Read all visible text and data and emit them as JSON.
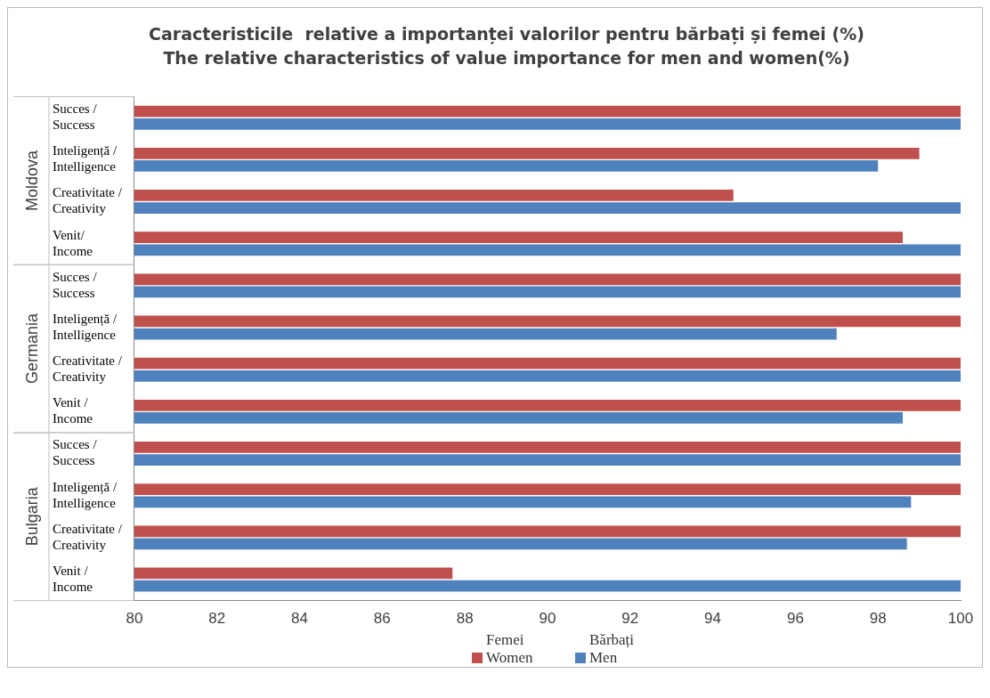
{
  "chart_data": {
    "type": "bar",
    "orientation": "horizontal",
    "title": "Caracteristicile  relative a importanței valorilor pentru bărbați și femei (%)",
    "subtitle": "The relative characteristics of value importance for men and women(%)",
    "categories": [
      "Succes / Success",
      "Inteligență / Intelligence",
      "Creativitate / Creativity",
      "Venit/ Income",
      "Succes / Success",
      "Inteligență / Intelligence",
      "Creativitate / Creativity",
      "Venit / Income",
      "Succes / Success",
      "Inteligență / Intelligence",
      "Creativitate / Creativity",
      "Venit / Income"
    ],
    "series": [
      {
        "name": "Femei Women",
        "color": "#c0504d",
        "values": [
          100,
          99,
          94.5,
          98.6,
          100,
          100,
          100,
          100,
          100,
          100,
          100,
          87.7
        ]
      },
      {
        "name": "Bărbați Men",
        "color": "#4f81bd",
        "values": [
          100,
          98,
          100,
          100,
          100,
          97,
          100,
          98.6,
          100,
          98.8,
          98.7,
          100
        ]
      }
    ],
    "annotations": [
      "Moldova",
      "Germania",
      "Bulgaria"
    ],
    "xlim": [
      80,
      100
    ],
    "xticks": [
      80,
      82,
      84,
      86,
      88,
      90,
      92,
      94,
      96,
      98,
      100
    ],
    "grid": false,
    "legend": "bottom"
  }
}
